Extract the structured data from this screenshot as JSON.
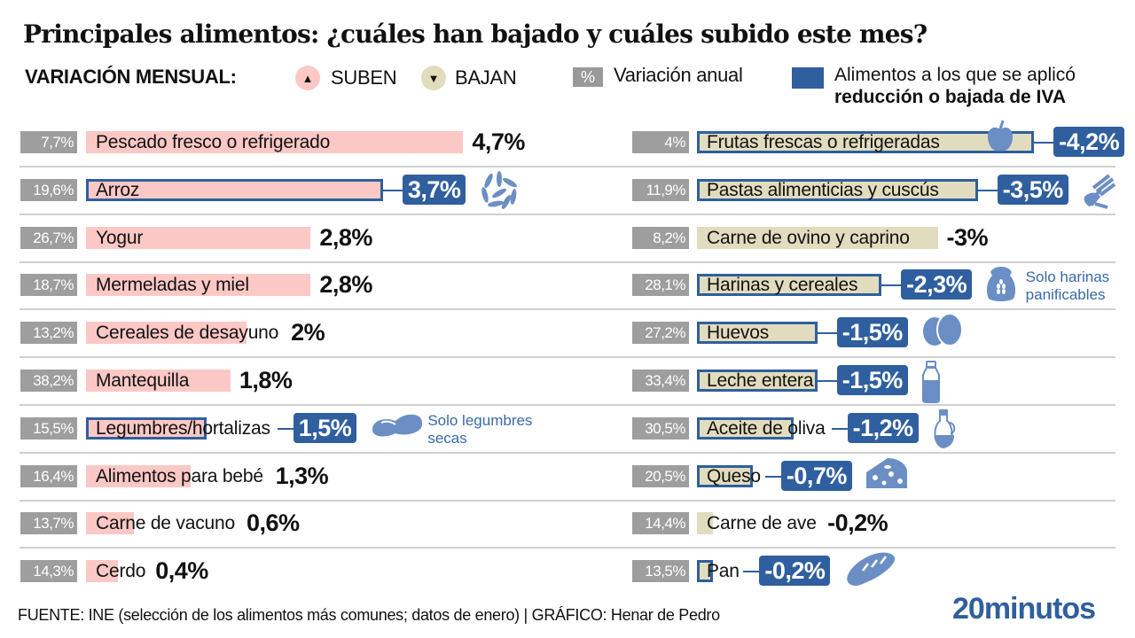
{
  "title": "Principales alimentos: ¿cuáles han bajado y cuáles subido este mes?",
  "legend": {
    "heading": "VARIACIÓN MENSUAL:",
    "up_label": "SUBEN",
    "up_symbol": "▲",
    "down_label": "BAJAN",
    "down_symbol": "▼",
    "annual_symbol": "%",
    "annual_label": "Variación anual",
    "iva_label_1": "Alimentos a los que se aplicó",
    "iva_label_2": "reducción o bajada de IVA"
  },
  "colors": {
    "up": "#fcc8c5",
    "down": "#e2dcbe",
    "iva": "#2f5f9e",
    "annual": "#9e9e9e"
  },
  "chart_data": {
    "type": "bar",
    "title": "Principales alimentos: ¿cuáles han bajado y cuáles subido este mes?",
    "xlabel": "Variación mensual (%)",
    "ylabel": "",
    "series": [
      {
        "name": "Suben",
        "items": [
          {
            "name": "Pescado fresco o refrigerado",
            "monthly": 4.7,
            "monthly_label": "4,7%",
            "annual_label": "7,7%",
            "iva": false
          },
          {
            "name": "Arroz",
            "monthly": 3.7,
            "monthly_label": "3,7%",
            "annual_label": "19,6%",
            "iva": true,
            "icon": "rice-icon"
          },
          {
            "name": "Yogur",
            "monthly": 2.8,
            "monthly_label": "2,8%",
            "annual_label": "26,7%",
            "iva": false
          },
          {
            "name": "Mermeladas y miel",
            "monthly": 2.8,
            "monthly_label": "2,8%",
            "annual_label": "18,7%",
            "iva": false
          },
          {
            "name": "Cereales de desayuno",
            "monthly": 2.0,
            "monthly_label": "2%",
            "annual_label": "13,2%",
            "iva": false
          },
          {
            "name": "Mantequilla",
            "monthly": 1.8,
            "monthly_label": "1,8%",
            "annual_label": "38,2%",
            "iva": false
          },
          {
            "name": "Legumbres/hortalizas",
            "monthly": 1.5,
            "monthly_label": "1,5%",
            "annual_label": "15,5%",
            "iva": true,
            "icon": "bean-icon",
            "note": "Solo legumbres secas"
          },
          {
            "name": "Alimentos para bebé",
            "monthly": 1.3,
            "monthly_label": "1,3%",
            "annual_label": "16,4%",
            "iva": false
          },
          {
            "name": "Carne de vacuno",
            "monthly": 0.6,
            "monthly_label": "0,6%",
            "annual_label": "13,7%",
            "iva": false
          },
          {
            "name": "Cerdo",
            "monthly": 0.4,
            "monthly_label": "0,4%",
            "annual_label": "14,3%",
            "iva": false
          }
        ]
      },
      {
        "name": "Bajan",
        "items": [
          {
            "name": "Frutas frescas o refrigeradas",
            "monthly": -4.2,
            "monthly_label": "-4,2%",
            "annual_label": "4%",
            "iva": true,
            "icon": "apple-icon"
          },
          {
            "name": "Pastas alimenticias y cuscús",
            "monthly": -3.5,
            "monthly_label": "-3,5%",
            "annual_label": "11,9%",
            "iva": true,
            "icon": "pasta-icon"
          },
          {
            "name": "Carne de ovino y caprino",
            "monthly": -3.0,
            "monthly_label": "-3%",
            "annual_label": "8,2%",
            "iva": false
          },
          {
            "name": "Harinas y cereales",
            "monthly": -2.3,
            "monthly_label": "-2,3%",
            "annual_label": "28,1%",
            "iva": true,
            "icon": "flour-sack-icon",
            "note": "Solo harinas panificables"
          },
          {
            "name": "Huevos",
            "monthly": -1.5,
            "monthly_label": "-1,5%",
            "annual_label": "27,2%",
            "iva": true,
            "icon": "eggs-icon"
          },
          {
            "name": "Leche entera",
            "monthly": -1.5,
            "monthly_label": "-1,5%",
            "annual_label": "33,4%",
            "iva": true,
            "icon": "milk-bottle-icon"
          },
          {
            "name": "Aceite de oliva",
            "monthly": -1.2,
            "monthly_label": "-1,2%",
            "annual_label": "30,5%",
            "iva": true,
            "icon": "oil-jar-icon"
          },
          {
            "name": "Queso",
            "monthly": -0.7,
            "monthly_label": "-0,7%",
            "annual_label": "20,5%",
            "iva": true,
            "icon": "cheese-icon"
          },
          {
            "name": "Carne de ave",
            "monthly": -0.2,
            "monthly_label": "-0,2%",
            "annual_label": "14,4%",
            "iva": false
          },
          {
            "name": "Pan",
            "monthly": -0.2,
            "monthly_label": "-0,2%",
            "annual_label": "13,5%",
            "iva": true,
            "icon": "bread-icon"
          }
        ]
      }
    ]
  },
  "footer": {
    "source": "FUENTE: INE (selección de los alimentos más comunes; datos de enero) | GRÁFICO: Henar de Pedro",
    "logo": "20minutos"
  }
}
